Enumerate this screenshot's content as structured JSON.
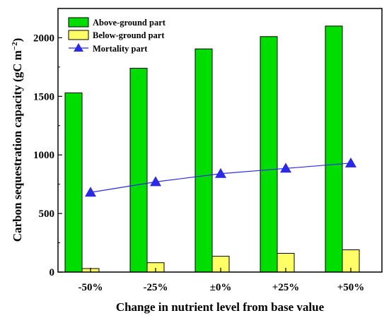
{
  "chart_data": {
    "type": "bar",
    "categories": [
      "-50%",
      "-25%",
      "±0%",
      "+25%",
      "+50%"
    ],
    "series": [
      {
        "name": "Above-ground part",
        "kind": "bar",
        "color": "#00dd00",
        "values": [
          1530,
          1740,
          1905,
          2010,
          2100
        ]
      },
      {
        "name": "Below-ground part",
        "kind": "bar",
        "color": "#ffff66",
        "values": [
          30,
          80,
          135,
          160,
          190
        ]
      },
      {
        "name": "Mortality part",
        "kind": "line",
        "marker": "triangle",
        "color": "#2a2ae6",
        "values": [
          680,
          770,
          840,
          885,
          930
        ]
      }
    ],
    "xlabel": "Change in nutrient level from base value",
    "ylabel_main": "Carbon sequestration capacity (gC m",
    "ylabel_sup": "−2",
    "ylabel_end": ")",
    "yticks": [
      "0",
      "500",
      "1000",
      "1500",
      "2000"
    ],
    "ylim": [
      0,
      2250
    ],
    "legend_position": "top-left",
    "grid": false
  }
}
